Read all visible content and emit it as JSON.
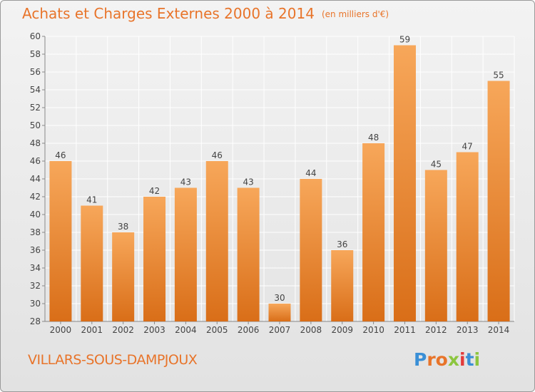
{
  "chart_data": {
    "type": "bar",
    "title": "Achats et Charges Externes 2000 à 2014",
    "subtitle": "(en milliers d'€)",
    "categories": [
      "2000",
      "2001",
      "2002",
      "2003",
      "2004",
      "2005",
      "2006",
      "2007",
      "2008",
      "2009",
      "2010",
      "2011",
      "2012",
      "2013",
      "2014"
    ],
    "values": [
      46,
      41,
      38,
      42,
      43,
      46,
      43,
      30,
      44,
      36,
      48,
      59,
      45,
      47,
      55
    ],
    "ylim": [
      28,
      60
    ],
    "yticks": [
      28,
      30,
      32,
      34,
      36,
      38,
      40,
      42,
      44,
      46,
      48,
      50,
      52,
      54,
      56,
      58,
      60
    ],
    "grid": true,
    "bar_color": "#f0903a",
    "xlabel": "",
    "ylabel": ""
  },
  "footer": {
    "location": "VILLARS-SOUS-DAMPJOUX",
    "brand": "Proxiti"
  },
  "colors": {
    "accent": "#e8742a",
    "grid": "#ffffff"
  }
}
